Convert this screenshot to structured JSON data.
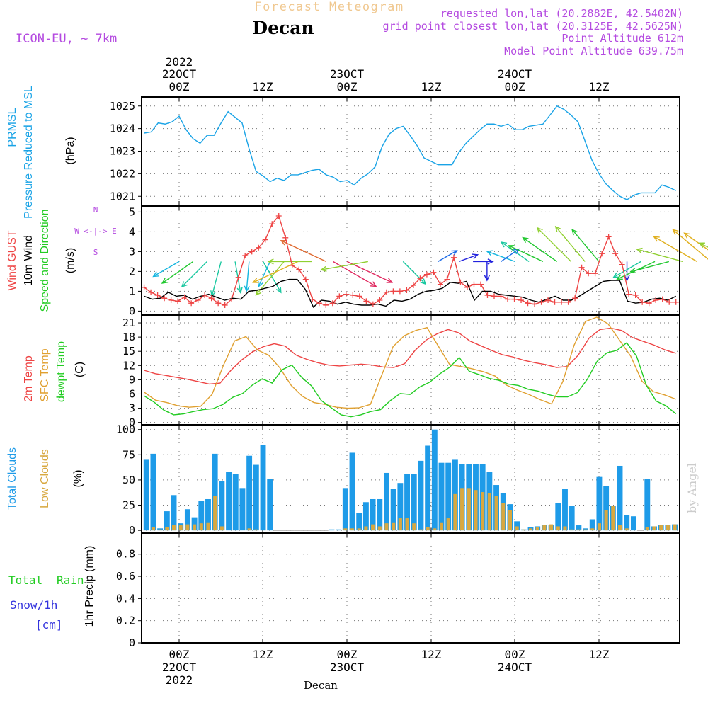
{
  "header": {
    "subtitle": "Forecast Meteogram",
    "station": "Decan",
    "model": "ICON-EU, ~ 7km",
    "requested": "requested lon,lat (20.2882E, 42.5402N)",
    "gridpoint": "grid point closest lon,lat (20.3125E, 42.5625N)",
    "point_altitude": "Point Altitude 612m",
    "model_altitude": "Model Point Altitude 639.75m",
    "year": "2022",
    "watermark": "by Angel"
  },
  "time_axis": {
    "top_labels": [
      "00Z",
      "12Z",
      "00Z",
      "12Z",
      "00Z",
      "12Z"
    ],
    "date_labels": [
      {
        "slot": 0,
        "text": "22OCT"
      },
      {
        "slot": 2,
        "text": "23OCT"
      },
      {
        "slot": 4,
        "text": "24OCT"
      }
    ],
    "bottom_station": "Decan",
    "start_hours_before_first_00Z": 5,
    "end_hours_after_last_12Z": 11
  },
  "colors": {
    "pressure": "#19a3e6",
    "gust": "#ee4444",
    "wind10m": "#000000",
    "temp2m": "#ee4444",
    "sfc": "#e0a030",
    "dewpt": "#22cc22",
    "total_clouds": "#1e9be8",
    "low_clouds": "#d8a840",
    "rain": "#22cc22",
    "snow": "#3333dd",
    "violet": "#b44ae0",
    "title_orange": "#f0c890"
  },
  "chart_data": [
    {
      "type": "line",
      "id": "pressure",
      "ylabel": "(hPa)",
      "side_labels": [
        "PRMSL",
        "Pressure Reduced to MSL"
      ],
      "ylim": [
        1020.6,
        1025.4
      ],
      "yticks": [
        1021,
        1022,
        1023,
        1024,
        1025
      ],
      "series": [
        {
          "name": "PRMSL",
          "values": [
            1023.8,
            1023.85,
            1024.25,
            1024.2,
            1024.3,
            1024.55,
            1023.95,
            1023.55,
            1023.35,
            1023.7,
            1023.7,
            1024.25,
            1024.75,
            1024.5,
            1024.25,
            1023.1,
            1022.1,
            1021.9,
            1021.65,
            1021.8,
            1021.7,
            1021.95,
            1021.95,
            1022.05,
            1022.15,
            1022.2,
            1021.95,
            1021.85,
            1021.65,
            1021.7,
            1021.5,
            1021.8,
            1022.0,
            1022.3,
            1023.2,
            1023.75,
            1024.0,
            1024.1,
            1023.7,
            1023.25,
            1022.7,
            1022.55,
            1022.4,
            1022.4,
            1022.4,
            1022.95,
            1023.35,
            1023.65,
            1023.95,
            1024.2,
            1024.2,
            1024.1,
            1024.2,
            1023.95,
            1023.95,
            1024.1,
            1024.15,
            1024.2,
            1024.6,
            1025.0,
            1024.85,
            1024.6,
            1024.3,
            1023.45,
            1022.6,
            1022.0,
            1021.55,
            1021.25,
            1021.0,
            1020.85,
            1021.05,
            1021.15,
            1021.15,
            1021.15,
            1021.5,
            1021.4,
            1021.25
          ]
        }
      ]
    },
    {
      "type": "line",
      "id": "wind",
      "ylabel": "(m/s)",
      "side_labels": [
        "Wind GUST",
        "10m Wind",
        "Speed and Direction"
      ],
      "compass": [
        "N",
        "W <-|-> E",
        "S"
      ],
      "ylim": [
        -0.2,
        5.3
      ],
      "yticks": [
        0,
        1,
        2,
        3,
        4,
        5
      ],
      "series": [
        {
          "name": "Wind GUST",
          "marker": "+",
          "values": [
            1.2,
            0.95,
            0.8,
            0.65,
            0.55,
            0.5,
            0.7,
            0.4,
            0.55,
            0.8,
            0.65,
            0.4,
            0.3,
            0.6,
            1.7,
            2.8,
            3.0,
            3.2,
            3.6,
            4.4,
            4.8,
            3.7,
            2.3,
            2.1,
            1.6,
            0.6,
            0.4,
            0.3,
            0.4,
            0.75,
            0.85,
            0.8,
            0.75,
            0.5,
            0.35,
            0.55,
            0.95,
            1.0,
            1.0,
            1.05,
            1.3,
            1.65,
            1.85,
            1.95,
            1.35,
            1.6,
            2.7,
            1.45,
            1.2,
            1.35,
            1.35,
            0.8,
            0.75,
            0.75,
            0.6,
            0.6,
            0.55,
            0.4,
            0.35,
            0.45,
            0.55,
            0.45,
            0.45,
            0.45,
            0.65,
            2.2,
            1.9,
            1.9,
            2.9,
            3.75,
            2.9,
            2.35,
            0.85,
            0.8,
            0.45,
            0.4,
            0.55,
            0.6,
            0.45,
            0.45
          ]
        },
        {
          "name": "10m Wind",
          "values": [
            0.75,
            0.6,
            0.65,
            0.95,
            0.75,
            0.8,
            0.6,
            0.75,
            0.85,
            0.7,
            0.55,
            0.65,
            0.6,
            1.0,
            1.05,
            1.15,
            1.25,
            1.5,
            1.6,
            1.6,
            1.1,
            0.2,
            0.55,
            0.5,
            0.35,
            0.45,
            0.35,
            0.3,
            0.3,
            0.35,
            0.25,
            0.55,
            0.5,
            0.6,
            0.85,
            1.0,
            1.05,
            1.15,
            1.45,
            1.4,
            1.5,
            0.55,
            1.0,
            1.0,
            0.85,
            0.8,
            0.75,
            0.7,
            0.55,
            0.45,
            0.6,
            0.75,
            0.55,
            0.55,
            0.75,
            1.0,
            1.25,
            1.5,
            1.55,
            1.55,
            0.5,
            0.4,
            0.45,
            0.6,
            0.65,
            0.55,
            0.75
          ]
        }
      ],
      "arrows": [
        {
          "hour": 0,
          "dir": 60,
          "spd": 1.0
        },
        {
          "hour": 2,
          "dir": 55,
          "spd": 1.4
        },
        {
          "hour": 4,
          "dir": 45,
          "spd": 1.3
        },
        {
          "hour": 6,
          "dir": 15,
          "spd": 1.3
        },
        {
          "hour": 8,
          "dir": 350,
          "spd": 1.1
        },
        {
          "hour": 10,
          "dir": 5,
          "spd": 1.0
        },
        {
          "hour": 12,
          "dir": 330,
          "spd": 1.3
        },
        {
          "hour": 13,
          "dir": 25,
          "spd": 0.9
        },
        {
          "hour": 15,
          "dir": 40,
          "spd": 1.7
        },
        {
          "hour": 17,
          "dir": 65,
          "spd": 2.1
        },
        {
          "hour": 19,
          "dir": 90,
          "spd": 1.7
        },
        {
          "hour": 21,
          "dir": 115,
          "spd": 2.5
        },
        {
          "hour": 22,
          "dir": 300,
          "spd": 2.7
        },
        {
          "hour": 24,
          "dir": 295,
          "spd": 2.6
        },
        {
          "hour": 27,
          "dir": 80,
          "spd": 1.9
        },
        {
          "hour": 32,
          "dir": 315,
          "spd": 1.1
        },
        {
          "hour": 37,
          "dir": 240,
          "spd": 0.6
        },
        {
          "hour": 40,
          "dir": 250,
          "spd": 0.5
        },
        {
          "hour": 42,
          "dir": 270,
          "spd": 0.5
        },
        {
          "hour": 44,
          "dir": 0,
          "spd": 0.45
        },
        {
          "hour": 46,
          "dir": 235,
          "spd": 0.6
        },
        {
          "hour": 48,
          "dir": 110,
          "spd": 1.0
        },
        {
          "hour": 50,
          "dir": 125,
          "spd": 1.2
        },
        {
          "hour": 52,
          "dir": 115,
          "spd": 1.4
        },
        {
          "hour": 54,
          "dir": 125,
          "spd": 1.6
        },
        {
          "hour": 56,
          "dir": 135,
          "spd": 1.9
        },
        {
          "hour": 58,
          "dir": 140,
          "spd": 1.8
        },
        {
          "hour": 60,
          "dir": 140,
          "spd": 1.6
        },
        {
          "hour": 64,
          "dir": 0,
          "spd": 0.45
        },
        {
          "hour": 66,
          "dir": 60,
          "spd": 1.1
        },
        {
          "hour": 68,
          "dir": 65,
          "spd": 1.6
        },
        {
          "hour": 70,
          "dir": 75,
          "spd": 1.5
        },
        {
          "hour": 72,
          "dir": 105,
          "spd": 1.9
        },
        {
          "hour": 74,
          "dir": 120,
          "spd": 2.0
        },
        {
          "hour": 76,
          "dir": 130,
          "spd": 2.1
        },
        {
          "hour": 78,
          "dir": 125,
          "spd": 2.0
        },
        {
          "hour": 80,
          "dir": 115,
          "spd": 1.7
        },
        {
          "hour": 81,
          "dir": 125,
          "spd": 1.4
        },
        {
          "hour": 85,
          "dir": 20,
          "spd": 0.8
        },
        {
          "hour": 87,
          "dir": 35,
          "spd": 0.9
        },
        {
          "hour": 89,
          "dir": 300,
          "spd": 1.8
        },
        {
          "hour": 91,
          "dir": 320,
          "spd": 2.0
        },
        {
          "hour": 93,
          "dir": 330,
          "spd": 1.8
        },
        {
          "hour": 95,
          "dir": 345,
          "spd": 1.0
        },
        {
          "hour": 99,
          "dir": 270,
          "spd": 0.3
        },
        {
          "hour": 103,
          "dir": 280,
          "spd": 0.7
        },
        {
          "hour": 106,
          "dir": 280,
          "spd": 0.6
        },
        {
          "hour": 108,
          "dir": 285,
          "spd": 0.55
        },
        {
          "hour": 110,
          "dir": 300,
          "spd": 0.5
        },
        {
          "hour": 112,
          "dir": 310,
          "spd": 0.7
        }
      ]
    },
    {
      "type": "line",
      "id": "temperature",
      "ylabel": "(C)",
      "side_labels": [
        "2m Temp",
        "SFC Temp",
        "dewpt Temp"
      ],
      "ylim": [
        -0.5,
        22.5
      ],
      "yticks": [
        0,
        3,
        6,
        9,
        12,
        15,
        18,
        21
      ],
      "series": [
        {
          "name": "2m Temp",
          "values": [
            11.0,
            10.3,
            9.9,
            9.5,
            9.1,
            8.6,
            8.1,
            8.3,
            11.0,
            13.2,
            14.9,
            16.0,
            16.6,
            16.1,
            14.2,
            13.3,
            12.6,
            12.1,
            11.9,
            12.1,
            12.3,
            12.1,
            11.7,
            11.6,
            12.4,
            15.3,
            17.4,
            18.7,
            19.6,
            18.9,
            17.2,
            16.2,
            15.2,
            14.3,
            13.8,
            13.1,
            12.6,
            12.2,
            11.6,
            11.8,
            14.2,
            17.8,
            19.6,
            19.9,
            19.4,
            17.9,
            17.1,
            16.3,
            15.3,
            14.6
          ]
        },
        {
          "name": "SFC Temp",
          "values": [
            6.4,
            4.7,
            4.2,
            3.5,
            3.2,
            3.4,
            5.9,
            12.0,
            17.2,
            18.1,
            15.3,
            14.2,
            11.5,
            7.8,
            5.5,
            4.2,
            3.8,
            3.2,
            3.0,
            3.1,
            3.8,
            10.0,
            16.0,
            18.3,
            19.4,
            20.0,
            16.1,
            12.2,
            11.8,
            11.3,
            10.7,
            9.8,
            7.9,
            6.8,
            5.9,
            4.8,
            3.9,
            8.6,
            16.3,
            21.3,
            22.2,
            20.8,
            17.4,
            14.0,
            8.7,
            6.5,
            5.8,
            4.9
          ]
        },
        {
          "name": "dewpt Temp",
          "values": [
            5.6,
            4.3,
            2.6,
            1.6,
            1.8,
            2.3,
            2.7,
            2.9,
            3.8,
            5.3,
            6.1,
            7.9,
            9.2,
            8.3,
            11.1,
            12.1,
            9.5,
            7.7,
            4.6,
            3.1,
            1.6,
            1.2,
            1.6,
            2.3,
            2.7,
            4.6,
            6.1,
            5.9,
            7.5,
            8.5,
            10.2,
            11.6,
            13.7,
            10.8,
            10.1,
            9.3,
            8.9,
            8.1,
            7.8,
            7.0,
            6.6,
            5.9,
            5.4,
            5.4,
            6.3,
            9.1,
            12.9,
            14.7,
            15.2,
            16.8,
            14.0,
            7.8,
            4.5,
            3.5,
            1.8
          ]
        }
      ]
    },
    {
      "type": "bar",
      "id": "clouds",
      "ylabel": "(%)",
      "side_labels": [
        "Total Clouds",
        "Low Clouds"
      ],
      "ylim": [
        -2,
        104
      ],
      "yticks": [
        0,
        25,
        50,
        75,
        100
      ],
      "series": [
        {
          "name": "Total Clouds",
          "values": [
            70,
            76,
            2,
            19,
            35,
            7,
            21,
            13,
            29,
            31,
            76,
            49,
            58,
            56,
            42,
            74,
            65,
            85,
            51,
            0,
            0,
            0,
            0,
            0,
            0,
            0,
            0,
            1,
            1,
            42,
            77,
            17,
            28,
            31,
            31,
            57,
            41,
            47,
            56,
            56,
            69,
            84,
            100,
            67,
            67,
            70,
            66,
            66,
            66,
            66,
            58,
            45,
            37,
            26,
            9,
            1,
            3,
            4,
            5,
            5,
            27,
            41,
            24,
            5,
            2,
            11,
            53,
            44,
            24,
            64,
            15,
            14,
            0,
            51,
            4,
            5,
            5,
            6
          ]
        },
        {
          "name": "Low Clouds",
          "values": [
            0,
            3,
            1,
            3,
            5,
            5,
            6,
            6,
            7,
            8,
            34,
            4,
            0,
            0,
            0,
            2,
            1,
            0,
            0,
            0,
            0,
            0,
            0,
            0,
            0,
            0,
            0,
            0,
            0,
            2,
            2,
            2,
            4,
            6,
            4,
            7,
            8,
            12,
            12,
            7,
            1,
            3,
            2,
            8,
            12,
            36,
            42,
            42,
            40,
            38,
            37,
            34,
            27,
            20,
            4,
            1,
            2,
            3,
            5,
            6,
            4,
            4,
            1,
            1,
            1,
            2,
            7,
            20,
            24,
            5,
            2,
            0,
            0,
            3,
            4,
            5,
            5,
            6
          ]
        }
      ]
    },
    {
      "type": "bar",
      "id": "precip",
      "ylabel": "1hr Precip (mm)",
      "side_labels": [
        "Total",
        "Rain",
        "Snow/1h",
        "[cm]"
      ],
      "ylim": [
        0,
        0.99
      ],
      "yticks": [
        0,
        0.2,
        0.4,
        0.6,
        0.8
      ],
      "series": [
        {
          "name": "Total Precip",
          "values": []
        }
      ]
    }
  ]
}
